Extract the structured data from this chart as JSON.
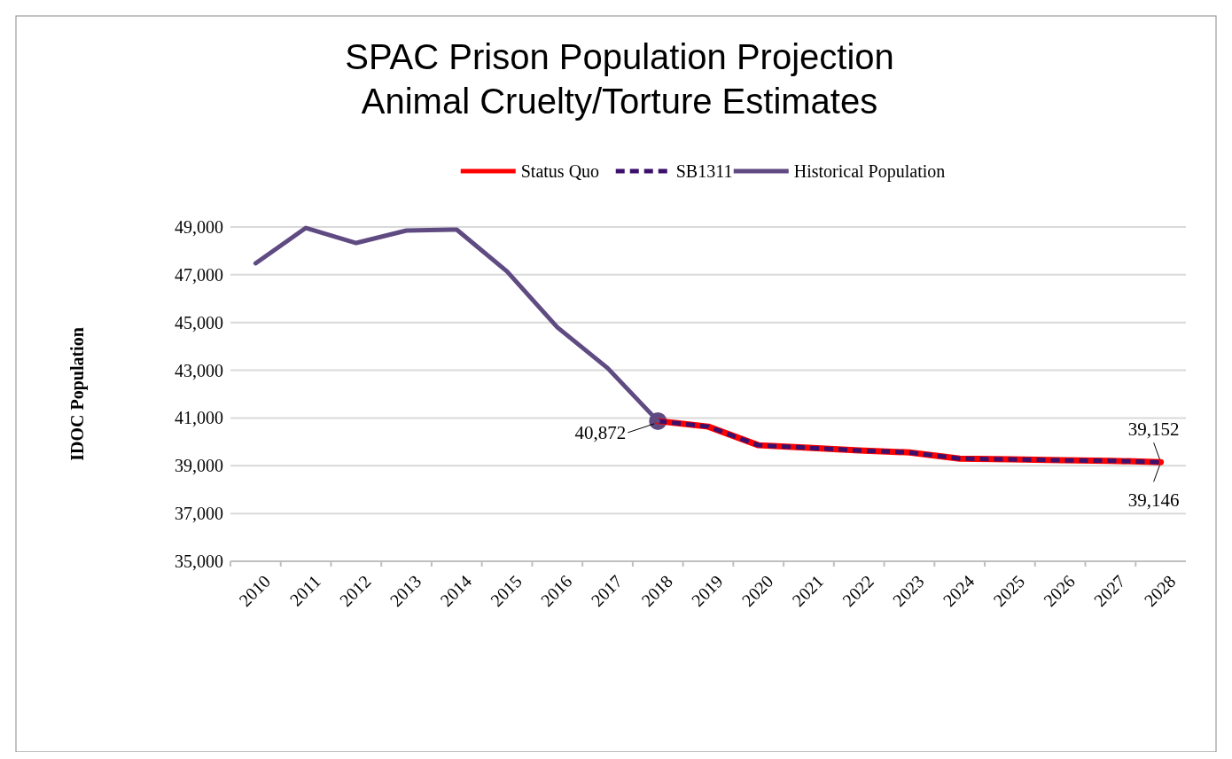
{
  "chart_data": {
    "type": "line",
    "title": "SPAC Prison Population Projection\nAnimal Cruelty/Torture Estimates",
    "ylabel": "IDOC Population",
    "categories": [
      "2010",
      "2011",
      "2012",
      "2013",
      "2014",
      "2015",
      "2016",
      "2017",
      "2018",
      "2019",
      "2020",
      "2021",
      "2022",
      "2023",
      "2024",
      "2025",
      "2026",
      "2027",
      "2028"
    ],
    "series": [
      {
        "name": "Status Quo",
        "color": "#ff0000",
        "line_style": "solid",
        "values": [
          null,
          null,
          null,
          null,
          null,
          null,
          null,
          null,
          40872,
          40640,
          39860,
          39750,
          39640,
          39560,
          39300,
          39270,
          39230,
          39210,
          39152
        ],
        "value_labels": [
          null,
          null,
          null,
          null,
          null,
          null,
          null,
          null,
          null,
          null,
          null,
          null,
          null,
          null,
          null,
          null,
          null,
          null,
          "39,152"
        ]
      },
      {
        "name": "SB1311",
        "color": "#3b0f6b",
        "line_style": "dashed",
        "values": [
          null,
          null,
          null,
          null,
          null,
          null,
          null,
          null,
          40872,
          40640,
          39860,
          39750,
          39640,
          39560,
          39300,
          39270,
          39230,
          39210,
          39146
        ],
        "value_labels": [
          null,
          null,
          null,
          null,
          null,
          null,
          null,
          null,
          null,
          null,
          null,
          null,
          null,
          null,
          null,
          null,
          null,
          null,
          "39,146"
        ]
      },
      {
        "name": "Historical Population",
        "color": "#5f4b82",
        "line_style": "solid",
        "values": [
          47480,
          48960,
          48330,
          48850,
          48890,
          47140,
          44800,
          43090,
          40872,
          null,
          null,
          null,
          null,
          null,
          null,
          null,
          null,
          null,
          null
        ],
        "value_labels": [
          null,
          null,
          null,
          null,
          null,
          null,
          null,
          null,
          "40,872",
          null,
          null,
          null,
          null,
          null,
          null,
          null,
          null,
          null,
          null
        ]
      }
    ],
    "ylim": [
      35000,
      49000
    ],
    "yticks": [
      {
        "value": 35000,
        "label": "35,000"
      },
      {
        "value": 37000,
        "label": "37,000"
      },
      {
        "value": 39000,
        "label": "39,000"
      },
      {
        "value": 41000,
        "label": "41,000"
      },
      {
        "value": 43000,
        "label": "43,000"
      },
      {
        "value": 45000,
        "label": "45,000"
      },
      {
        "value": 47000,
        "label": "47,000"
      },
      {
        "value": 49000,
        "label": "49,000"
      }
    ],
    "grid": "y",
    "legend": "top"
  }
}
